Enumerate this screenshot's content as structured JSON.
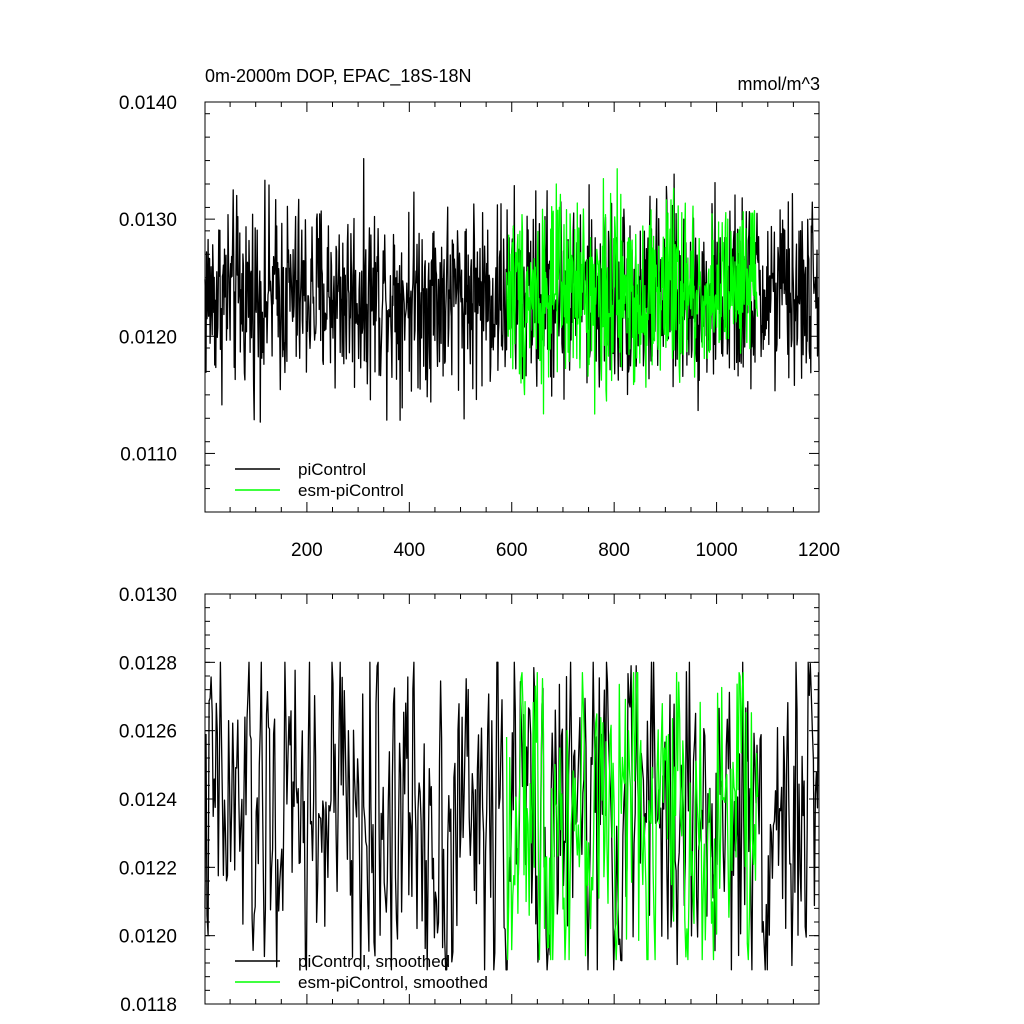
{
  "chart_data": [
    {
      "type": "line",
      "title": "0m-2000m DOP, EPAC_18S-18N",
      "units": "mmol/m^3",
      "xlim": [
        1,
        1200
      ],
      "ylim": [
        0.0105,
        0.014
      ],
      "x_ticks": [
        200,
        400,
        600,
        800,
        1000,
        1200
      ],
      "y_ticks": [
        "0.0110",
        "0.0120",
        "0.0130",
        "0.0140"
      ],
      "grid": false,
      "legend_position": "bottom-left",
      "series": [
        {
          "name": "piControl",
          "color": "#000000",
          "x_range": [
            1,
            1200
          ],
          "mean": 0.01235,
          "min": 0.011,
          "max": 0.01378
        },
        {
          "name": "esm-piControl",
          "color": "#00ff00",
          "x_range": [
            590,
            1080
          ],
          "mean": 0.01237,
          "min": 0.011,
          "max": 0.01351
        }
      ]
    },
    {
      "type": "line",
      "title": "",
      "xlim": [
        1,
        1200
      ],
      "ylim": [
        0.0118,
        0.013
      ],
      "y_ticks": [
        "0.0118",
        "0.0120",
        "0.0122",
        "0.0124",
        "0.0126",
        "0.0128",
        "0.0130"
      ],
      "grid": false,
      "legend_position": "bottom-left",
      "series": [
        {
          "name": "piControl, smoothed",
          "color": "#000000",
          "x_range": [
            1,
            1200
          ],
          "mean": 0.01235,
          "min": 0.0119,
          "max": 0.0128
        },
        {
          "name": "esm-piControl, smoothed",
          "color": "#00ff00",
          "x_range": [
            590,
            1080
          ],
          "mean": 0.01236,
          "min": 0.01193,
          "max": 0.01277
        }
      ]
    }
  ]
}
